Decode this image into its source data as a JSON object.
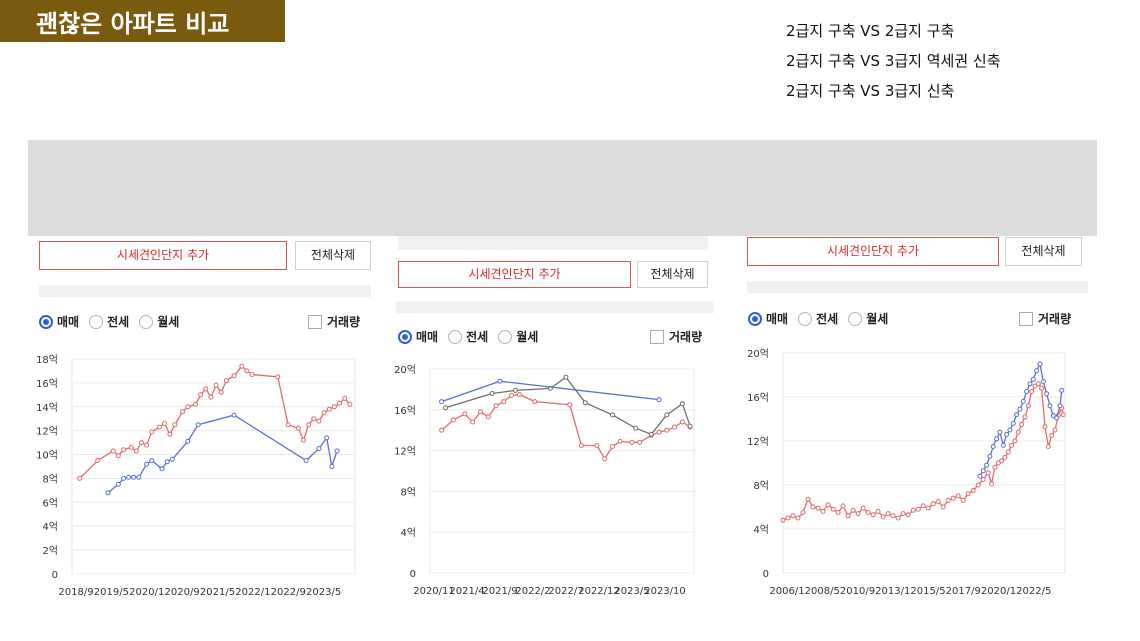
{
  "header": {
    "title": "괜찮은 아파트 비교"
  },
  "notes": [
    "2급지 구축  VS 2급지 구축",
    "2급지 구축 VS 3급지 역세권 신축",
    "2급지 구축  VS 3급지 신축"
  ],
  "controls": {
    "add_label": "시세견인단지 추가",
    "delete_label": "전체삭제",
    "radio": [
      "매매",
      "전세",
      "월세"
    ],
    "checkbox": "거래량"
  },
  "colors": {
    "red": "#e06b6b",
    "blue": "#5a6fd6",
    "gray": "#6e6e6e",
    "accent": "#7a5a0f"
  },
  "chart_data": [
    {
      "type": "line",
      "x_ticks": [
        "2018/9",
        "2019/5",
        "2020/1",
        "2020/9",
        "2021/5",
        "2022/1",
        "2022/9",
        "2023/5"
      ],
      "y_ticks": [
        "0",
        "2억",
        "4억",
        "6억",
        "8억",
        "10억",
        "12억",
        "14억",
        "16억",
        "18억"
      ],
      "ylim": [
        0,
        18
      ],
      "series": [
        {
          "color": "red",
          "points": [
            [
              2018.75,
              8.0
            ],
            [
              2019.1,
              9.5
            ],
            [
              2019.4,
              10.3
            ],
            [
              2019.5,
              9.9
            ],
            [
              2019.6,
              10.4
            ],
            [
              2019.75,
              10.6
            ],
            [
              2019.85,
              10.3
            ],
            [
              2019.95,
              11.0
            ],
            [
              2020.05,
              10.8
            ],
            [
              2020.15,
              11.9
            ],
            [
              2020.3,
              12.3
            ],
            [
              2020.4,
              12.6
            ],
            [
              2020.5,
              11.7
            ],
            [
              2020.6,
              12.5
            ],
            [
              2020.75,
              13.6
            ],
            [
              2020.85,
              14.0
            ],
            [
              2021.0,
              14.2
            ],
            [
              2021.1,
              15.0
            ],
            [
              2021.2,
              15.5
            ],
            [
              2021.3,
              14.8
            ],
            [
              2021.4,
              15.8
            ],
            [
              2021.5,
              15.2
            ],
            [
              2021.6,
              16.2
            ],
            [
              2021.75,
              16.6
            ],
            [
              2021.9,
              17.4
            ],
            [
              2022.0,
              17.0
            ],
            [
              2022.1,
              16.7
            ],
            [
              2022.6,
              16.5
            ],
            [
              2022.8,
              12.5
            ],
            [
              2023.0,
              12.2
            ],
            [
              2023.1,
              11.2
            ],
            [
              2023.2,
              12.5
            ],
            [
              2023.3,
              13.0
            ],
            [
              2023.4,
              12.8
            ],
            [
              2023.5,
              13.5
            ],
            [
              2023.6,
              13.8
            ],
            [
              2023.7,
              14.0
            ],
            [
              2023.8,
              14.3
            ],
            [
              2023.9,
              14.7
            ],
            [
              2024.0,
              14.2
            ]
          ]
        },
        {
          "color": "blue",
          "points": [
            [
              2019.3,
              6.8
            ],
            [
              2019.5,
              7.5
            ],
            [
              2019.6,
              8.0
            ],
            [
              2019.7,
              8.1
            ],
            [
              2019.8,
              8.1
            ],
            [
              2019.9,
              8.1
            ],
            [
              2020.05,
              9.2
            ],
            [
              2020.15,
              9.5
            ],
            [
              2020.35,
              8.8
            ],
            [
              2020.45,
              9.4
            ],
            [
              2020.55,
              9.6
            ],
            [
              2020.85,
              11.1
            ],
            [
              2021.05,
              12.5
            ],
            [
              2021.75,
              13.3
            ],
            [
              2023.15,
              9.5
            ],
            [
              2023.4,
              10.5
            ],
            [
              2023.55,
              11.4
            ],
            [
              2023.65,
              9.0
            ],
            [
              2023.75,
              10.3
            ]
          ]
        }
      ]
    },
    {
      "type": "line",
      "x_ticks": [
        "2020/11",
        "2021/4",
        "2021/9",
        "2022/2",
        "2022/7",
        "2022/12",
        "2023/5",
        "2023/10"
      ],
      "y_ticks": [
        "0",
        "4억",
        "8억",
        "12억",
        "16억",
        "20억"
      ],
      "ylim": [
        0,
        20
      ],
      "series": [
        {
          "color": "red",
          "points": [
            [
              2020.95,
              14.0
            ],
            [
              2021.1,
              15.0
            ],
            [
              2021.25,
              15.6
            ],
            [
              2021.35,
              14.8
            ],
            [
              2021.45,
              15.8
            ],
            [
              2021.55,
              15.3
            ],
            [
              2021.65,
              16.4
            ],
            [
              2021.75,
              16.8
            ],
            [
              2021.85,
              17.4
            ],
            [
              2021.95,
              17.5
            ],
            [
              2022.15,
              16.8
            ],
            [
              2022.6,
              16.5
            ],
            [
              2022.75,
              12.5
            ],
            [
              2022.95,
              12.5
            ],
            [
              2023.05,
              11.2
            ],
            [
              2023.15,
              12.4
            ],
            [
              2023.25,
              12.9
            ],
            [
              2023.4,
              12.8
            ],
            [
              2023.5,
              12.8
            ],
            [
              2023.65,
              13.5
            ],
            [
              2023.75,
              13.8
            ],
            [
              2023.85,
              14.0
            ],
            [
              2023.95,
              14.3
            ],
            [
              2024.05,
              14.8
            ],
            [
              2024.15,
              14.3
            ]
          ]
        },
        {
          "color": "gray",
          "points": [
            [
              2021.0,
              16.2
            ],
            [
              2021.6,
              17.6
            ],
            [
              2021.9,
              17.9
            ],
            [
              2022.35,
              18.1
            ],
            [
              2022.55,
              19.2
            ],
            [
              2022.8,
              16.7
            ],
            [
              2023.15,
              15.5
            ],
            [
              2023.45,
              14.2
            ],
            [
              2023.65,
              13.6
            ],
            [
              2023.85,
              15.5
            ],
            [
              2024.05,
              16.6
            ],
            [
              2024.15,
              14.4
            ]
          ]
        },
        {
          "color": "blue",
          "points": [
            [
              2020.95,
              16.8
            ],
            [
              2021.7,
              18.8
            ],
            [
              2023.75,
              17.0
            ]
          ]
        }
      ]
    },
    {
      "type": "line",
      "x_ticks": [
        "2006/1",
        "2008/5",
        "2010/9",
        "2013/1",
        "2015/5",
        "2017/9",
        "2020/1",
        "2022/5"
      ],
      "y_ticks": [
        "0",
        "4억",
        "8억",
        "12억",
        "16억",
        "20억"
      ],
      "ylim": [
        0,
        20
      ],
      "series": [
        {
          "color": "red",
          "points": [
            [
              2006.0,
              4.8
            ],
            [
              2006.3,
              5.0
            ],
            [
              2006.6,
              5.2
            ],
            [
              2006.9,
              5.0
            ],
            [
              2007.2,
              5.5
            ],
            [
              2007.5,
              6.7
            ],
            [
              2007.8,
              6.0
            ],
            [
              2008.1,
              5.9
            ],
            [
              2008.4,
              5.6
            ],
            [
              2008.7,
              6.2
            ],
            [
              2009.0,
              5.8
            ],
            [
              2009.3,
              5.5
            ],
            [
              2009.6,
              6.1
            ],
            [
              2009.9,
              5.2
            ],
            [
              2010.2,
              5.7
            ],
            [
              2010.5,
              5.4
            ],
            [
              2010.8,
              5.9
            ],
            [
              2011.1,
              5.5
            ],
            [
              2011.4,
              5.3
            ],
            [
              2011.7,
              5.6
            ],
            [
              2012.0,
              5.1
            ],
            [
              2012.3,
              5.4
            ],
            [
              2012.6,
              5.2
            ],
            [
              2012.9,
              5.0
            ],
            [
              2013.2,
              5.4
            ],
            [
              2013.5,
              5.3
            ],
            [
              2013.8,
              5.7
            ],
            [
              2014.1,
              5.8
            ],
            [
              2014.4,
              6.1
            ],
            [
              2014.7,
              5.9
            ],
            [
              2015.0,
              6.3
            ],
            [
              2015.3,
              6.5
            ],
            [
              2015.6,
              6.0
            ],
            [
              2015.9,
              6.6
            ],
            [
              2016.2,
              6.8
            ],
            [
              2016.5,
              7.0
            ],
            [
              2016.8,
              6.6
            ],
            [
              2017.1,
              7.2
            ],
            [
              2017.4,
              7.5
            ],
            [
              2017.7,
              8.0
            ],
            [
              2018.0,
              8.5
            ],
            [
              2018.3,
              9.1
            ],
            [
              2018.5,
              8.1
            ],
            [
              2018.7,
              9.6
            ],
            [
              2018.9,
              10.0
            ],
            [
              2019.1,
              10.2
            ],
            [
              2019.3,
              10.5
            ],
            [
              2019.5,
              11.0
            ],
            [
              2019.7,
              11.6
            ],
            [
              2019.9,
              12.0
            ],
            [
              2020.1,
              12.8
            ],
            [
              2020.3,
              13.5
            ],
            [
              2020.5,
              14.2
            ],
            [
              2020.7,
              15.2
            ],
            [
              2020.9,
              16.5
            ],
            [
              2021.1,
              17.0
            ],
            [
              2021.3,
              17.2
            ],
            [
              2021.5,
              16.8
            ],
            [
              2021.7,
              13.3
            ],
            [
              2021.9,
              11.5
            ],
            [
              2022.1,
              12.5
            ],
            [
              2022.3,
              13.0
            ],
            [
              2022.5,
              14.3
            ],
            [
              2022.7,
              15.0
            ],
            [
              2022.8,
              14.4
            ]
          ]
        },
        {
          "color": "blue",
          "points": [
            [
              2017.8,
              8.8
            ],
            [
              2018.0,
              9.3
            ],
            [
              2018.2,
              9.8
            ],
            [
              2018.4,
              10.6
            ],
            [
              2018.6,
              11.5
            ],
            [
              2018.8,
              12.2
            ],
            [
              2019.0,
              12.8
            ],
            [
              2019.2,
              11.6
            ],
            [
              2019.4,
              12.6
            ],
            [
              2019.6,
              13.0
            ],
            [
              2019.8,
              13.6
            ],
            [
              2020.0,
              14.4
            ],
            [
              2020.2,
              14.9
            ],
            [
              2020.4,
              15.6
            ],
            [
              2020.6,
              16.5
            ],
            [
              2020.8,
              17.2
            ],
            [
              2021.0,
              17.6
            ],
            [
              2021.2,
              18.4
            ],
            [
              2021.4,
              19.0
            ],
            [
              2021.6,
              17.4
            ],
            [
              2021.8,
              16.3
            ],
            [
              2022.0,
              15.2
            ],
            [
              2022.2,
              14.3
            ],
            [
              2022.4,
              14.1
            ],
            [
              2022.6,
              15.2
            ],
            [
              2022.7,
              16.6
            ]
          ]
        }
      ]
    }
  ]
}
